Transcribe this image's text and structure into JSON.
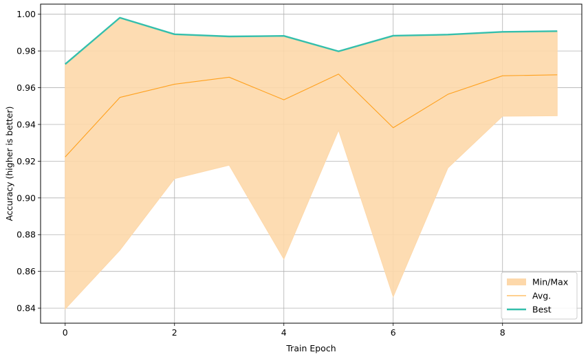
{
  "chart_data": {
    "type": "line",
    "xlabel": "Train Epoch",
    "ylabel": "Accuracy (higher is better)",
    "xlim": [
      -0.45,
      9.45
    ],
    "ylim": [
      0.8318,
      1.0055
    ],
    "xticks": [
      0,
      2,
      4,
      6,
      8
    ],
    "yticks": [
      0.84,
      0.86,
      0.88,
      0.9,
      0.92,
      0.94,
      0.96,
      0.98,
      1.0
    ],
    "ytick_labels": [
      "0.84",
      "0.86",
      "0.88",
      "0.90",
      "0.92",
      "0.94",
      "0.96",
      "0.98",
      "1.00"
    ],
    "grid": true,
    "legend_position": "lower right",
    "x": [
      0,
      1,
      2,
      3,
      4,
      5,
      6,
      7,
      8,
      9
    ],
    "band": {
      "name": "Min/Max",
      "color": "#fdd8aa",
      "min": [
        0.8395,
        0.8715,
        0.9105,
        0.9178,
        0.8667,
        0.9368,
        0.8462,
        0.9163,
        0.9445,
        0.9447
      ],
      "max": [
        0.9728,
        0.9981,
        0.9891,
        0.9879,
        0.9882,
        0.9798,
        0.9883,
        0.9889,
        0.9904,
        0.9908
      ]
    },
    "series": [
      {
        "name": "Avg.",
        "color": "#ffa01c",
        "values": [
          0.9223,
          0.9547,
          0.9619,
          0.9657,
          0.9534,
          0.9674,
          0.9382,
          0.9564,
          0.9665,
          0.967
        ]
      },
      {
        "name": "Best",
        "color": "#34bfac",
        "values": [
          0.9728,
          0.9981,
          0.9891,
          0.9879,
          0.9882,
          0.9798,
          0.9883,
          0.9889,
          0.9904,
          0.9908
        ]
      }
    ]
  }
}
